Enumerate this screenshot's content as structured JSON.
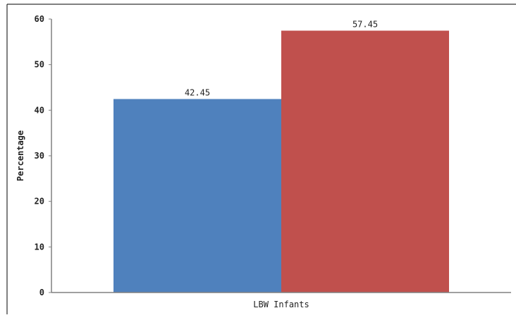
{
  "chart_data": {
    "type": "bar",
    "categories": [
      "LBW Infants"
    ],
    "series": [
      {
        "values": [
          42.45
        ],
        "color": "#4f81bd"
      },
      {
        "values": [
          57.45
        ],
        "color": "#c0504d"
      }
    ],
    "data_labels": [
      "42.45",
      "57.45"
    ],
    "title": "",
    "xlabel": "LBW Infants",
    "ylabel": "Percentage",
    "ylim": [
      0,
      60
    ],
    "yticks": [
      0,
      10,
      20,
      30,
      40,
      50,
      60
    ],
    "ytick_labels": [
      "0",
      "10",
      "20",
      "30",
      "40",
      "50",
      "60"
    ],
    "grid": false,
    "legend": "none"
  }
}
